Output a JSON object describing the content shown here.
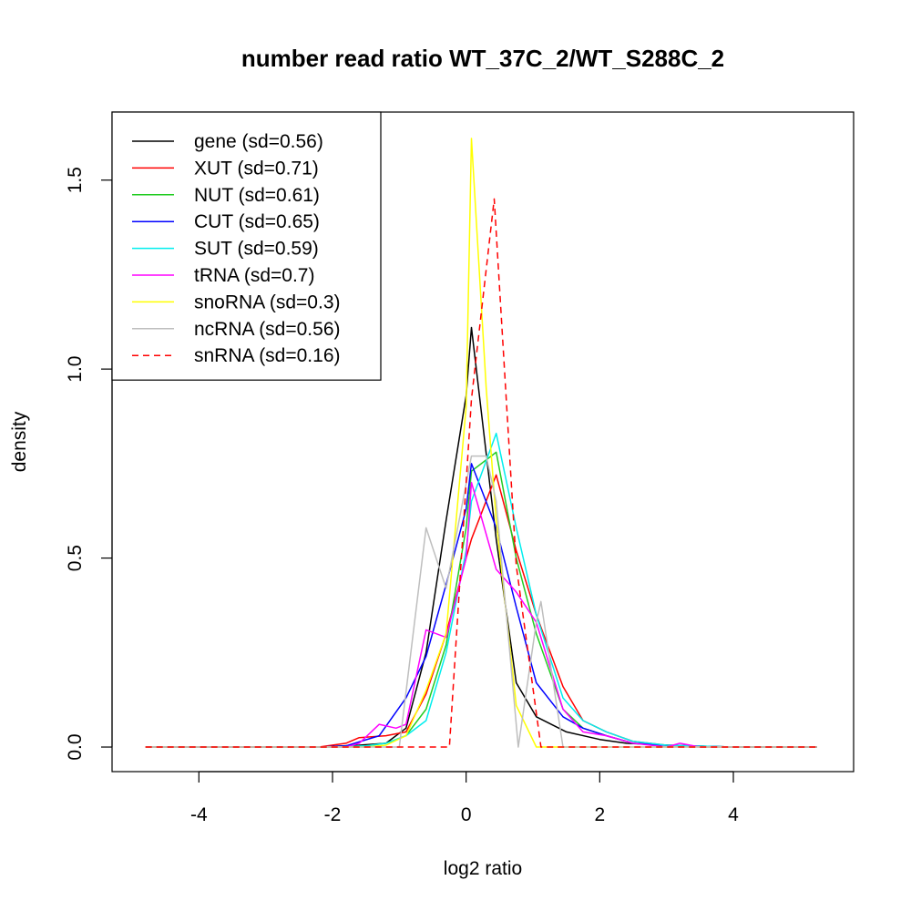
{
  "chart_data": {
    "type": "line",
    "title": "number read ratio WT_37C_2/WT_S288C_2",
    "xlabel": "log2 ratio",
    "ylabel": "density",
    "xlim": [
      -5.3,
      5.8
    ],
    "ylim": [
      -0.065,
      1.68
    ],
    "xticks": [
      -4,
      -2,
      0,
      2,
      4
    ],
    "xtick_labels": [
      "-4",
      "-2",
      "0",
      "2",
      "4"
    ],
    "yticks": [
      0.0,
      0.5,
      1.0,
      1.5
    ],
    "ytick_labels": [
      "0.0",
      "0.5",
      "1.0",
      "1.5"
    ],
    "grid": false,
    "legend_position": "top-left",
    "series": [
      {
        "name": "gene (sd=0.56)",
        "color": "#000000",
        "dash": "solid",
        "x": [
          -4.8,
          -3.5,
          -2.5,
          -2.2,
          -1.6,
          -1.2,
          -0.9,
          -0.6,
          -0.3,
          0.0,
          0.08,
          0.45,
          0.75,
          1.05,
          1.5,
          2.0,
          2.4,
          3.0,
          4.0,
          5.25
        ],
        "y": [
          0.0,
          0.0,
          0.0,
          0.0,
          0.005,
          0.01,
          0.05,
          0.25,
          0.6,
          0.93,
          1.11,
          0.55,
          0.17,
          0.08,
          0.04,
          0.02,
          0.01,
          0.005,
          0.0,
          0.0
        ]
      },
      {
        "name": "XUT (sd=0.71)",
        "color": "#ff0000",
        "dash": "solid",
        "x": [
          -4.8,
          -3.5,
          -2.2,
          -1.8,
          -1.6,
          -1.2,
          -0.9,
          -0.6,
          -0.3,
          0.0,
          0.08,
          0.45,
          0.75,
          1.05,
          1.45,
          1.75,
          2.1,
          2.5,
          3.0,
          3.5,
          4.0,
          5.25
        ],
        "y": [
          0.0,
          0.0,
          0.0,
          0.01,
          0.025,
          0.03,
          0.04,
          0.14,
          0.3,
          0.5,
          0.55,
          0.72,
          0.52,
          0.35,
          0.16,
          0.07,
          0.04,
          0.015,
          0.005,
          0.0,
          0.0,
          0.0
        ]
      },
      {
        "name": "NUT (sd=0.61)",
        "color": "#22cc22",
        "dash": "solid",
        "x": [
          -4.8,
          -3.0,
          -2.0,
          -1.5,
          -1.2,
          -0.9,
          -0.6,
          -0.3,
          0.0,
          0.08,
          0.45,
          0.75,
          1.05,
          1.45,
          1.75,
          2.1,
          2.5,
          3.0,
          4.0,
          5.25
        ],
        "y": [
          0.0,
          0.0,
          0.0,
          0.003,
          0.01,
          0.03,
          0.1,
          0.27,
          0.58,
          0.73,
          0.78,
          0.5,
          0.3,
          0.1,
          0.05,
          0.03,
          0.01,
          0.005,
          0.0,
          0.0
        ]
      },
      {
        "name": "CUT (sd=0.65)",
        "color": "#0000ff",
        "dash": "solid",
        "x": [
          -4.8,
          -3.0,
          -2.2,
          -1.8,
          -1.3,
          -0.9,
          -0.6,
          -0.3,
          0.0,
          0.08,
          0.45,
          0.75,
          1.05,
          1.45,
          1.75,
          2.1,
          2.5,
          3.0,
          4.0,
          5.25
        ],
        "y": [
          0.0,
          0.0,
          0.0,
          0.003,
          0.03,
          0.13,
          0.24,
          0.43,
          0.63,
          0.75,
          0.58,
          0.37,
          0.17,
          0.08,
          0.05,
          0.03,
          0.01,
          0.005,
          0.0,
          0.0
        ]
      },
      {
        "name": "SUT (sd=0.59)",
        "color": "#00eeee",
        "dash": "solid",
        "x": [
          -4.8,
          -3.0,
          -2.0,
          -1.5,
          -1.2,
          -0.9,
          -0.6,
          -0.3,
          0.0,
          0.08,
          0.45,
          0.75,
          1.05,
          1.45,
          1.75,
          2.1,
          2.5,
          3.0,
          4.0,
          5.25
        ],
        "y": [
          0.0,
          0.0,
          0.0,
          0.003,
          0.01,
          0.03,
          0.07,
          0.25,
          0.52,
          0.65,
          0.83,
          0.58,
          0.35,
          0.13,
          0.07,
          0.04,
          0.015,
          0.005,
          0.0,
          0.0
        ]
      },
      {
        "name": "tRNA (sd=0.7)",
        "color": "#ff00ff",
        "dash": "solid",
        "x": [
          -4.8,
          -2.5,
          -1.8,
          -1.6,
          -1.3,
          -1.05,
          -0.9,
          -0.6,
          -0.3,
          0.0,
          0.08,
          0.45,
          0.75,
          1.05,
          1.45,
          1.75,
          2.1,
          2.5,
          3.0,
          3.2,
          3.5,
          4.0,
          5.25
        ],
        "y": [
          0.0,
          0.0,
          0.0,
          0.01,
          0.06,
          0.05,
          0.06,
          0.31,
          0.29,
          0.5,
          0.7,
          0.47,
          0.41,
          0.33,
          0.1,
          0.04,
          0.03,
          0.01,
          0.0,
          0.01,
          0.0,
          0.0,
          0.0
        ]
      },
      {
        "name": "snoRNA (sd=0.3)",
        "color": "#ffff00",
        "dash": "solid",
        "x": [
          -4.8,
          -2.0,
          -1.5,
          -1.2,
          -0.9,
          -0.6,
          -0.3,
          0.0,
          0.08,
          0.3,
          0.45,
          0.75,
          1.05,
          1.5,
          2.0,
          5.25
        ],
        "y": [
          0.0,
          0.0,
          0.0,
          0.005,
          0.03,
          0.15,
          0.3,
          0.9,
          1.61,
          0.95,
          0.6,
          0.11,
          0.0,
          0.0,
          0.0,
          0.0
        ]
      },
      {
        "name": "ncRNA (sd=0.56)",
        "color": "#bebebe",
        "dash": "solid",
        "x": [
          -4.8,
          -2.0,
          -1.2,
          -1.0,
          -0.6,
          -0.3,
          0.08,
          0.3,
          0.45,
          0.78,
          1.05,
          1.12,
          1.45,
          2.0,
          5.25
        ],
        "y": [
          0.0,
          0.0,
          0.0,
          0.0,
          0.58,
          0.42,
          0.77,
          0.77,
          0.65,
          0.0,
          0.33,
          0.385,
          0.0,
          0.0,
          0.0
        ]
      },
      {
        "name": "snRNA (sd=0.16)",
        "color": "#ff0000",
        "dash": "dashed",
        "x": [
          -4.8,
          -0.25,
          0.08,
          0.42,
          0.75,
          1.12,
          2.0,
          5.25
        ],
        "y": [
          0.0,
          0.0,
          0.92,
          1.45,
          0.48,
          0.0,
          0.0,
          0.0
        ]
      }
    ]
  }
}
